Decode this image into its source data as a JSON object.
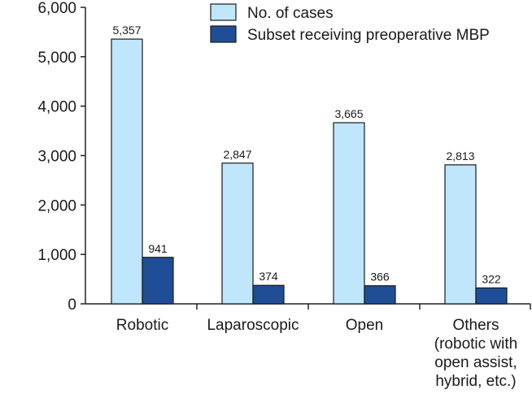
{
  "chart_data": {
    "type": "bar",
    "title": "",
    "xlabel": "",
    "ylabel": "",
    "ylim": [
      0,
      6000
    ],
    "yticks": [
      0,
      1000,
      2000,
      3000,
      4000,
      5000,
      6000
    ],
    "ytick_labels": [
      "0",
      "1,000",
      "2,000",
      "3,000",
      "4,000",
      "5,000",
      "6,000"
    ],
    "categories": [
      [
        "Robotic"
      ],
      [
        "Laparoscopic"
      ],
      [
        "Open"
      ],
      [
        "Others",
        "(robotic with",
        "open assist,",
        "hybrid, etc.)"
      ]
    ],
    "series": [
      {
        "name": "No. of cases",
        "color": "#bfe6fa",
        "values": [
          5357,
          2847,
          3665,
          2813
        ],
        "labels": [
          "5,357",
          "2,847",
          "3,665",
          "2,813"
        ]
      },
      {
        "name": "Subset receiving preoperative MBP",
        "color": "#1f4e96",
        "values": [
          941,
          374,
          366,
          322
        ],
        "labels": [
          "941",
          "374",
          "366",
          "322"
        ]
      }
    ],
    "legend_position": "top-right",
    "grid": false
  }
}
